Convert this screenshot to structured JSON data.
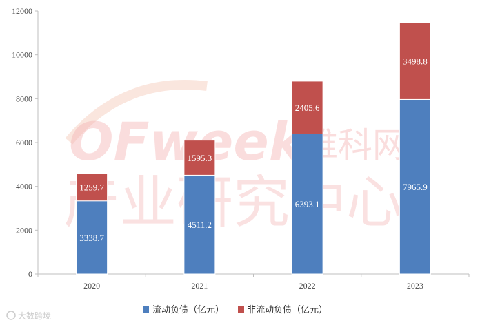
{
  "chart_data": {
    "type": "bar",
    "stacked": true,
    "categories": [
      "2020",
      "2021",
      "2022",
      "2023"
    ],
    "series": [
      {
        "name": "流动负债（亿元）",
        "values": [
          3338.7,
          4511.2,
          6393.1,
          7965.9
        ],
        "color": "#4e7fbe"
      },
      {
        "name": "非流动负债（亿元）",
        "values": [
          1259.7,
          1595.3,
          2405.6,
          3498.8
        ],
        "color": "#c0504d"
      }
    ],
    "data_labels": {
      "series0": [
        "3338.7",
        "4511.2",
        "6393.1",
        "7965.9"
      ],
      "series1": [
        "1259.7",
        "1595.3",
        "2405.6",
        "3498.8"
      ]
    },
    "y_ticks": [
      "0",
      "2000",
      "4000",
      "6000",
      "8000",
      "10000",
      "12000"
    ],
    "ylim": [
      0,
      12000
    ],
    "grid": false,
    "legend_position": "bottom-center"
  },
  "watermark": {
    "logo": "OFweek",
    "line1": "维科网",
    "line2": "产业研究中心",
    "source": "大数跨境"
  }
}
